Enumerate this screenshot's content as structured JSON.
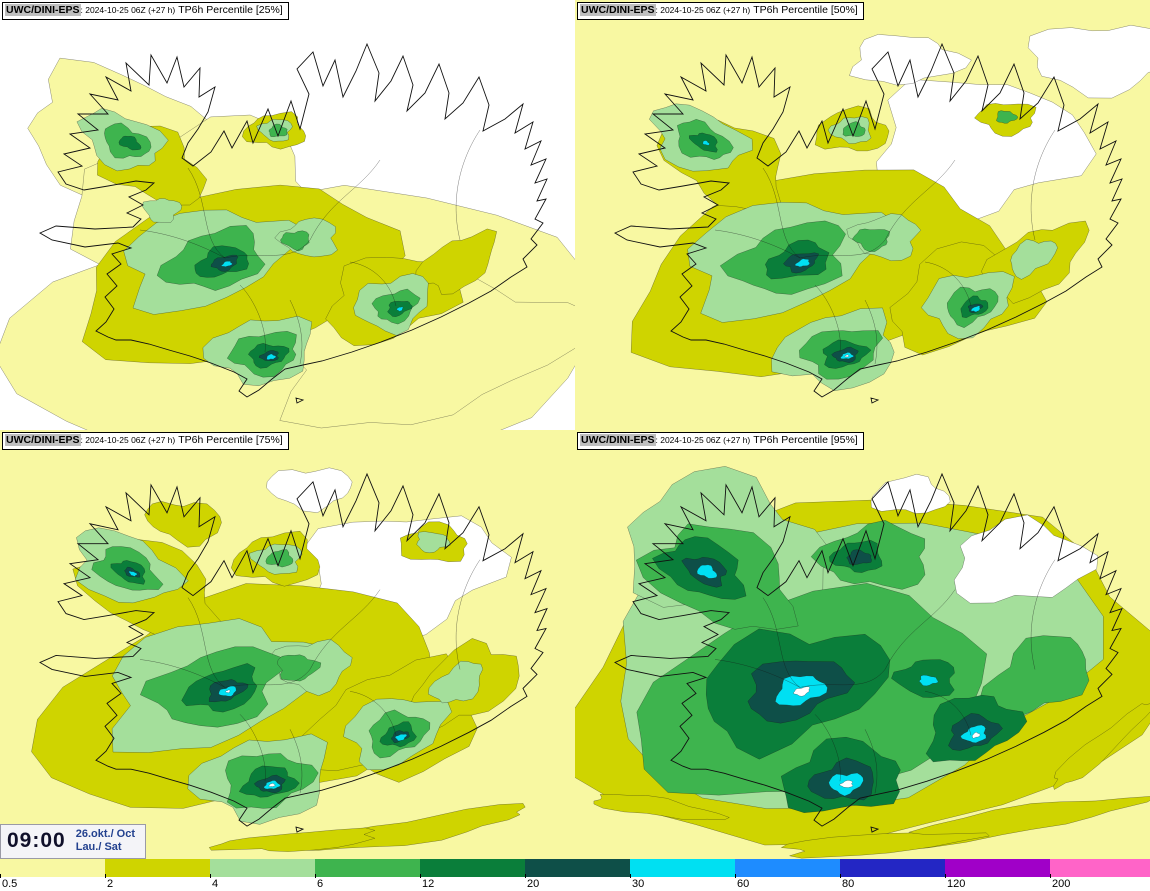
{
  "panels": [
    {
      "model": "UWC/DINI-EPS",
      "runinfo": ": 2024-10-25 06Z (+27 h)",
      "param": "TP6h Percentile [25%]"
    },
    {
      "model": "UWC/DINI-EPS",
      "runinfo": ": 2024-10-25 06Z (+27 h)",
      "param": "TP6h Percentile [50%]"
    },
    {
      "model": "UWC/DINI-EPS",
      "runinfo": ": 2024-10-25 06Z (+27 h)",
      "param": "TP6h Percentile [75%]"
    },
    {
      "model": "UWC/DINI-EPS",
      "runinfo": ": 2024-10-25 06Z (+27 h)",
      "param": "TP6h Percentile [95%]"
    }
  ],
  "clock": {
    "time": "09:00",
    "date_line1": "26.okt./ Oct",
    "date_line2": "Lau./ Sat"
  },
  "colorbar": {
    "ticks": [
      "0.5",
      "2",
      "4",
      "6",
      "12",
      "20",
      "30",
      "60",
      "80",
      "120",
      "200"
    ],
    "colors": [
      "#f8f8a2",
      "#cfd400",
      "#a4df9b",
      "#3eb44e",
      "#0a7e3a",
      "#0e4f48",
      "#00e0f2",
      "#1e8cff",
      "#2326c4",
      "#a000c8",
      "#ff64c8"
    ]
  },
  "map_colors": {
    "none": "#ffffff",
    "pale": "#f8f8a2",
    "olive": "#cfd400",
    "light_green": "#a4df9b",
    "green": "#3eb44e",
    "dark_green": "#0a7e3a",
    "dark_teal": "#0e4f48",
    "cyan": "#00e0f2",
    "core_white": "#ffffff"
  },
  "chart_data": {
    "type": "map",
    "model": "UWC/DINI-EPS",
    "run": "2024-10-25 06Z",
    "lead_time_h": 27,
    "parameter": "TP6h Percentile",
    "percentiles": [
      25,
      50,
      75,
      95
    ],
    "valid_time": "09:00 26.okt./ Oct Lau./ Sat",
    "scale_mm": [
      0.5,
      2,
      4,
      6,
      12,
      20,
      30,
      60,
      80,
      120,
      200
    ]
  }
}
